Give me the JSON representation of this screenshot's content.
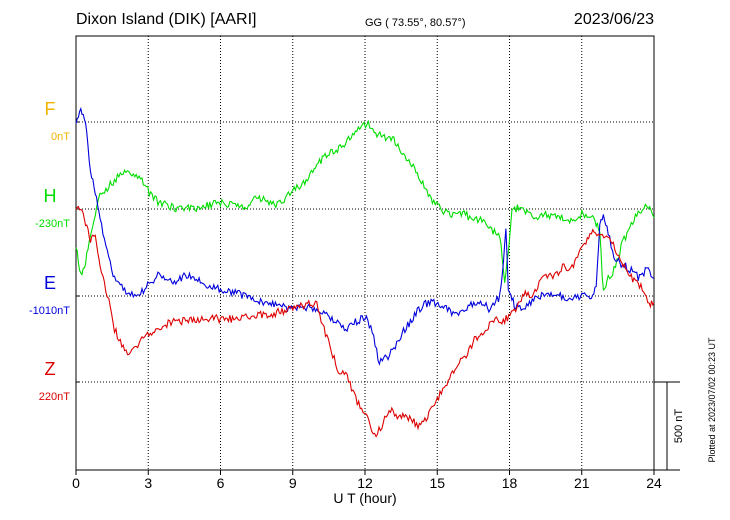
{
  "header": {
    "station": "Dixon Island (DIK)  [AARI]",
    "coords": "GG ( 73.55°,  80.57°)",
    "date": "2023/06/23"
  },
  "side_note": "Plotted at 2023/07/02 00:23 UT",
  "scale_label": "500 nT",
  "chart_data": {
    "type": "line",
    "title": "Dixon Island (DIK)  [AARI]",
    "xlabel": "U T (hour)",
    "xlim": [
      0,
      24
    ],
    "x_ticks": [
      "0",
      "3",
      "6",
      "9",
      "12",
      "15",
      "18",
      "21",
      "24"
    ],
    "grid": true,
    "units": "nT",
    "scale_bar_nT": 500,
    "components": [
      {
        "name": "F",
        "baseline_label": "0nT",
        "color": "#f0b400"
      },
      {
        "name": "H",
        "baseline_label": "-230nT",
        "color": "#00dd00"
      },
      {
        "name": "E",
        "baseline_label": "-1010nT",
        "color": "#0000dd"
      },
      {
        "name": "Z",
        "baseline_label": "220nT",
        "color": "#dd0000"
      }
    ],
    "series": [
      {
        "name": "H",
        "x": [
          0,
          0.2,
          0.4,
          0.6,
          0.8,
          1.0,
          1.3,
          1.6,
          1.9,
          2.2,
          2.5,
          2.8,
          3.1,
          3.4,
          3.8,
          4.2,
          4.6,
          5.0,
          5.5,
          6.0,
          6.5,
          7.0,
          7.5,
          7.9,
          8.3,
          8.7,
          9.0,
          9.5,
          10.0,
          10.4,
          10.8,
          11.2,
          11.6,
          11.9,
          12.2,
          12.5,
          12.8,
          13.2,
          13.6,
          14.0,
          14.4,
          14.8,
          15.2,
          15.6,
          16.0,
          16.4,
          16.8,
          17.2,
          17.6,
          17.8,
          17.9,
          18.1,
          18.5,
          19.0,
          19.5,
          20.0,
          20.5,
          21.0,
          21.4,
          21.6,
          21.75,
          21.9,
          22.1,
          22.4,
          22.7,
          23.0,
          23.4,
          23.7,
          24.0
        ],
        "values": [
          -200,
          -380,
          -300,
          -150,
          -30,
          80,
          120,
          160,
          200,
          220,
          190,
          150,
          80,
          40,
          20,
          0,
          10,
          0,
          20,
          40,
          20,
          0,
          60,
          50,
          20,
          60,
          100,
          150,
          250,
          310,
          330,
          380,
          440,
          470,
          480,
          430,
          410,
          390,
          320,
          240,
          150,
          50,
          -10,
          -30,
          -20,
          -50,
          -60,
          -120,
          -150,
          -420,
          -300,
          -20,
          20,
          -60,
          -30,
          -50,
          -60,
          -30,
          -50,
          -80,
          -140,
          -480,
          -400,
          -330,
          -190,
          -100,
          -10,
          20,
          -50
        ]
      },
      {
        "name": "E",
        "x": [
          0,
          0.2,
          0.4,
          0.6,
          0.8,
          1.0,
          1.3,
          1.6,
          1.9,
          2.2,
          2.5,
          2.8,
          3.1,
          3.4,
          3.8,
          4.2,
          4.6,
          5.0,
          5.5,
          6.0,
          6.5,
          7.0,
          7.5,
          8.0,
          8.5,
          9.0,
          9.5,
          10.0,
          10.4,
          10.8,
          11.2,
          11.6,
          12.0,
          12.3,
          12.6,
          12.9,
          13.2,
          13.6,
          14.0,
          14.4,
          14.8,
          15.2,
          15.6,
          16.0,
          16.4,
          16.8,
          17.2,
          17.6,
          17.75,
          17.85,
          17.95,
          18.2,
          18.6,
          19.0,
          19.5,
          20.0,
          20.5,
          21.0,
          21.4,
          21.6,
          21.75,
          21.9,
          22.1,
          22.4,
          22.7,
          23.0,
          23.4,
          23.7,
          24.0
        ],
        "values": [
          1000,
          1050,
          980,
          700,
          600,
          450,
          250,
          100,
          50,
          20,
          0,
          30,
          80,
          120,
          100,
          80,
          120,
          100,
          60,
          40,
          20,
          0,
          -20,
          -40,
          -60,
          -80,
          -60,
          -80,
          -100,
          -150,
          -200,
          -150,
          -120,
          -200,
          -380,
          -350,
          -300,
          -200,
          -120,
          -50,
          -30,
          -60,
          -90,
          -100,
          -50,
          -30,
          -80,
          0,
          200,
          400,
          50,
          -50,
          -80,
          -20,
          20,
          0,
          -10,
          0,
          0,
          50,
          400,
          450,
          350,
          200,
          180,
          150,
          100,
          150,
          100
        ]
      },
      {
        "name": "Z",
        "x": [
          0,
          0.2,
          0.4,
          0.6,
          0.8,
          1.0,
          1.3,
          1.6,
          1.9,
          2.2,
          2.5,
          2.8,
          3.2,
          3.6,
          4.0,
          4.5,
          5.0,
          5.5,
          6.0,
          6.5,
          7.0,
          7.5,
          8.0,
          8.5,
          9.0,
          9.5,
          10.0,
          10.3,
          10.6,
          10.9,
          11.2,
          11.5,
          11.8,
          12.1,
          12.4,
          12.7,
          13.0,
          13.4,
          13.8,
          14.2,
          14.6,
          15.0,
          15.4,
          15.8,
          16.2,
          16.6,
          17.0,
          17.4,
          17.8,
          18.2,
          18.6,
          19.0,
          19.4,
          19.8,
          20.2,
          20.6,
          21.0,
          21.4,
          21.8,
          22.2,
          22.6,
          23.0,
          23.4,
          23.8,
          24.0
        ],
        "values": [
          1000,
          1000,
          900,
          800,
          850,
          650,
          500,
          300,
          200,
          150,
          200,
          250,
          280,
          320,
          340,
          350,
          350,
          360,
          360,
          360,
          370,
          380,
          380,
          400,
          420,
          440,
          440,
          300,
          180,
          50,
          50,
          -50,
          -150,
          -200,
          -300,
          -250,
          -150,
          -200,
          -200,
          -250,
          -200,
          -100,
          0,
          100,
          150,
          250,
          300,
          350,
          350,
          400,
          500,
          500,
          600,
          600,
          650,
          650,
          750,
          850,
          850,
          800,
          700,
          600,
          550,
          450,
          450
        ]
      }
    ]
  }
}
